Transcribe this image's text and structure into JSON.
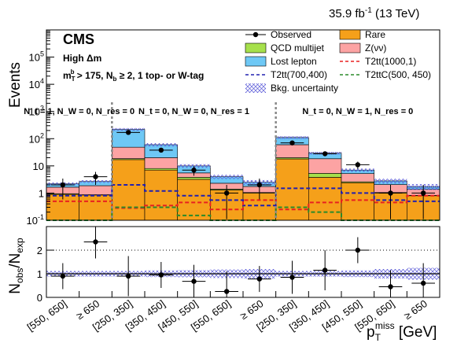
{
  "header": {
    "lumi": "35.9 fb",
    "lumi_exp": "-1",
    "energy": "(13 TeV)",
    "experiment": "CMS",
    "selection_line1": "High Δm",
    "selection_line2": "m_T^b > 175, N_b ≥ 2, 1 top- or W-tag"
  },
  "chart_data": [
    {
      "type": "bar",
      "panel": "upper",
      "ylabel": "Events",
      "yscale": "log",
      "ylim": [
        0.1,
        1000000
      ],
      "y_ticks": [
        "10^{-1}",
        "1",
        "10",
        "10^{2}",
        "10^{3}",
        "10^{4}",
        "10^{5}"
      ],
      "region_labels": [
        "N_t = 1, N_W = 0, N_res = 0",
        "N_t = 0, N_W = 0, N_res = 1",
        "N_t = 0, N_W = 1, N_res = 0"
      ],
      "categories": [
        "[550, 650]",
        "≥ 650",
        "[250, 350]",
        "[350, 450]",
        "[450, 550]",
        "[550, 650]",
        "≥ 650",
        "[250, 350]",
        "[350, 450]",
        "[450, 550]",
        "[550, 650]",
        "≥ 650"
      ],
      "stack": [
        {
          "name": "Rare",
          "color": "#f5a01a",
          "values": [
            0.9,
            0.85,
            17,
            7,
            3.2,
            1.3,
            1.0,
            18,
            3.8,
            2.4,
            1.0,
            0.8
          ]
        },
        {
          "name": "QCD multijet",
          "color": "#a6e04c",
          "values": [
            0.05,
            0.02,
            1.5,
            1.0,
            0.6,
            0.1,
            0.05,
            2.0,
            1.5,
            0.2,
            0.05,
            0.02
          ]
        },
        {
          "name": "Z(νν)",
          "color": "#fca3a3",
          "values": [
            0.7,
            1.0,
            30,
            12,
            1.7,
            0.9,
            0.7,
            40,
            13,
            2.6,
            1.0,
            0.55
          ]
        },
        {
          "name": "Lost lepton",
          "color": "#6ec8f5",
          "values": [
            0.55,
            0.8,
            170,
            40,
            4.5,
            1.7,
            0.75,
            50,
            11,
            1.8,
            0.75,
            0.35
          ]
        }
      ],
      "observed": {
        "name": "Observed",
        "values": [
          2.0,
          4.0,
          170,
          38,
          7.0,
          1.0,
          2.0,
          70,
          28,
          11,
          1.0,
          1.0
        ]
      },
      "signals": [
        {
          "name": "T2tt(700,400)",
          "color": "#2020b0",
          "style": "dashed",
          "values": [
            0.8,
            0.8,
            2.0,
            1.2,
            0.8,
            0.55,
            0.35,
            1.5,
            1.5,
            1.0,
            0.55,
            0.5
          ]
        },
        {
          "name": "T2tt(1000,1)",
          "color": "#e82020",
          "style": "dashed",
          "values": [
            0.5,
            0.5,
            0.28,
            0.35,
            0.45,
            0.25,
            0.55,
            0.25,
            0.45,
            0.55,
            0.45,
            0.8
          ]
        },
        {
          "name": "T2ttC(500, 450)",
          "color": "#2a8a2a",
          "style": "dashed",
          "values": [
            0.1,
            0.1,
            0.3,
            0.3,
            0.15,
            0.1,
            0.1,
            0.3,
            0.2,
            0.1,
            0.1,
            0.1
          ]
        }
      ],
      "uncertainty": {
        "name": "Bkg. uncertainty"
      }
    },
    {
      "type": "scatter",
      "panel": "lower",
      "ylabel": "N_obs/N_exp",
      "ylim": [
        0,
        3
      ],
      "y_ticks": [
        "0",
        "1",
        "2"
      ],
      "xlabel": "p_T^miss [GeV]",
      "categories": [
        "[550, 650]",
        "≥ 650",
        "[250, 350]",
        "[350, 450]",
        "[450, 550]",
        "[550, 650]",
        "≥ 650",
        "[250, 350]",
        "[350, 450]",
        "[450, 550]",
        "[550, 650]",
        "≥ 650"
      ],
      "values": [
        0.9,
        2.35,
        0.9,
        0.95,
        0.68,
        0.25,
        0.78,
        0.85,
        1.15,
        2.0,
        0.45,
        0.6
      ],
      "band_halfwidth": [
        0.12,
        0.12,
        0.12,
        0.14,
        0.15,
        0.18,
        0.2,
        0.12,
        0.12,
        0.14,
        0.2,
        0.25
      ]
    }
  ]
}
